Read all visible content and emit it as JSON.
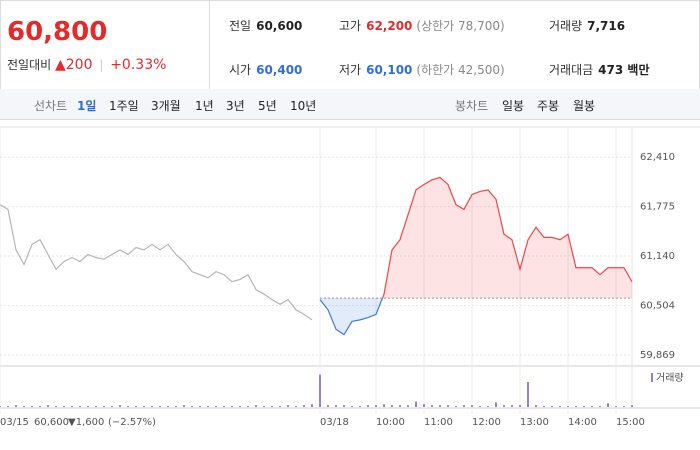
{
  "header": {
    "price": "60,800",
    "change_label": "전일대비",
    "change": "▲200",
    "change_rate": "+0.33%",
    "stats": [
      {
        "label": "전일",
        "value": "60,600"
      },
      {
        "label": "고가",
        "value": "62,200",
        "note": "(상한가 78,700)"
      },
      {
        "label": "거래량",
        "value": "7,716"
      },
      {
        "label": "시가",
        "value": "60,400"
      },
      {
        "label": "저가",
        "value": "60,100",
        "note": "(하한가 42,500)"
      },
      {
        "label": "거래대금",
        "value": "473 백만"
      }
    ]
  },
  "tabs": {
    "line_label": "선차트",
    "line": [
      "1일",
      "1주일",
      "3개월",
      "1년",
      "3년",
      "5년",
      "10년"
    ],
    "candle_label": "봉차트",
    "candle": [
      "일봉",
      "주봉",
      "월봉"
    ]
  },
  "footer": {
    "price": "60,600",
    "change": "▼1,600",
    "rate": "(−2.57%)"
  },
  "chart_data": [
    {
      "type": "line",
      "categories": [
        "03/15",
        null,
        null,
        null,
        null,
        null,
        null,
        null,
        null,
        null,
        null,
        null,
        null,
        null,
        null,
        null,
        null,
        null,
        null,
        null,
        null,
        null,
        null,
        null,
        null,
        null,
        null,
        null,
        null,
        null,
        null,
        null,
        null,
        null,
        null,
        null,
        null,
        null,
        null,
        null,
        "03/18",
        null,
        null,
        null,
        null,
        null,
        null,
        "10:00",
        null,
        null,
        null,
        null,
        null,
        "11:00",
        null,
        null,
        null,
        null,
        null,
        "12:00",
        null,
        null,
        null,
        null,
        null,
        "13:00",
        null,
        null,
        null,
        null,
        null,
        "14:00",
        null,
        null,
        null,
        null,
        null,
        "15:00",
        null,
        null
      ],
      "series": [
        {
          "color": "#b5b5b5",
          "values": [
            61800,
            61740,
            61220,
            61030,
            61290,
            61350,
            61160,
            60970,
            61070,
            61120,
            61070,
            61160,
            61120,
            61100,
            61160,
            61220,
            61160,
            61250,
            61220,
            61290,
            61220,
            61290,
            61160,
            61070,
            60940,
            60900,
            60860,
            60940,
            60900,
            60810,
            60840,
            60900,
            60710,
            60650,
            60580,
            60520,
            60580,
            60450,
            60390,
            60320,
            null,
            null,
            null,
            null,
            null,
            null,
            null,
            null,
            null,
            null,
            null,
            null,
            null,
            null,
            null,
            null,
            null,
            null,
            null,
            null,
            null,
            null,
            null,
            null,
            null,
            null,
            null,
            null,
            null,
            null,
            null,
            null,
            null,
            null,
            null,
            null,
            null,
            null,
            null,
            null
          ]
        },
        {
          "color": "#f04646",
          "down_color": "#3f7bd6",
          "values": [
            null,
            null,
            null,
            null,
            null,
            null,
            null,
            null,
            null,
            null,
            null,
            null,
            null,
            null,
            null,
            null,
            null,
            null,
            null,
            null,
            null,
            null,
            null,
            null,
            null,
            null,
            null,
            null,
            null,
            null,
            null,
            null,
            null,
            null,
            null,
            null,
            null,
            null,
            null,
            null,
            60580,
            60450,
            60200,
            60130,
            60300,
            60320,
            60350,
            60390,
            60650,
            61220,
            61350,
            61670,
            61990,
            62060,
            62120,
            62150,
            62060,
            61800,
            61740,
            61930,
            61970,
            61990,
            61870,
            61420,
            61350,
            60970,
            61350,
            61510,
            61380,
            61380,
            61350,
            61420,
            60990,
            60990,
            60990,
            60900,
            60990,
            60990,
            60990,
            60810
          ]
        }
      ],
      "baseline": 60600,
      "ylim": [
        59740,
        62760
      ],
      "yticks": [
        {
          "value": 62410,
          "label": "62,410"
        },
        {
          "value": 61775,
          "label": "61,775"
        },
        {
          "value": 61140,
          "label": "61,140"
        },
        {
          "value": 60504,
          "label": "60,504"
        },
        {
          "value": 59869,
          "label": "59,869"
        }
      ],
      "grid": true
    },
    {
      "type": "bar",
      "series": [
        {
          "name": "거래량",
          "color": "#9b7fc9",
          "values": [
            1,
            1,
            2,
            1,
            1,
            1,
            2,
            1,
            1,
            1,
            1,
            1,
            1,
            1,
            1,
            2,
            1,
            1,
            1,
            1,
            1,
            1,
            1,
            2,
            1,
            1,
            1,
            1,
            1,
            1,
            1,
            1,
            2,
            1,
            1,
            1,
            2,
            1,
            2,
            3,
            35,
            2,
            2,
            2,
            1,
            1,
            2,
            2,
            3,
            2,
            2,
            2,
            6,
            3,
            2,
            2,
            2,
            1,
            2,
            2,
            1,
            1,
            5,
            2,
            2,
            2,
            27,
            2,
            1,
            1,
            1,
            1,
            1,
            1,
            1,
            1,
            4,
            1,
            1,
            2
          ]
        }
      ],
      "ylim": [
        0,
        40
      ]
    }
  ]
}
